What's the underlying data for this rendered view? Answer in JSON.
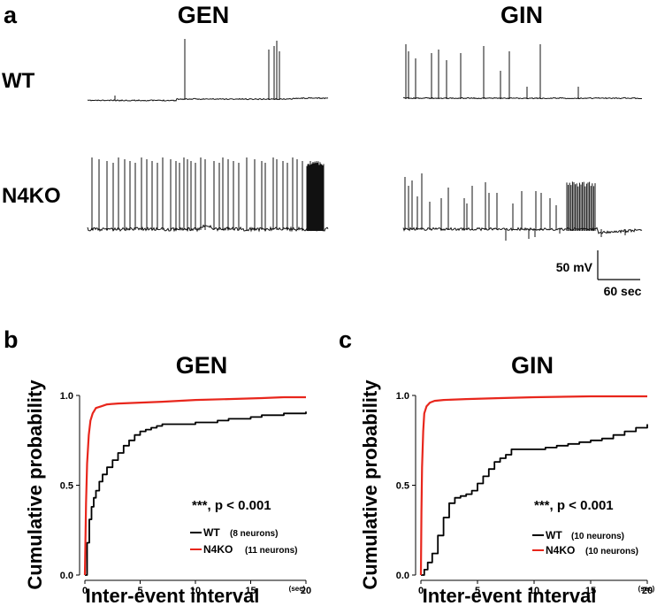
{
  "figure": {
    "panel_a": {
      "letter": "a",
      "columns": [
        "GEN",
        "GIN"
      ],
      "rows": [
        "WT",
        "N4KO"
      ],
      "scale_bar": {
        "voltage": "50 mV",
        "time": "60 sec"
      }
    },
    "panel_b": {
      "letter": "b"
    },
    "panel_c": {
      "letter": "c"
    }
  },
  "chart_data": [
    {
      "type": "line",
      "panel": "b",
      "title": "GEN",
      "xlabel": "Inter-event interval",
      "xunit": "(sec)",
      "ylabel": "Cumulative probability",
      "xlim": [
        0,
        20
      ],
      "ylim": [
        0,
        1
      ],
      "xticks": [
        0,
        5,
        10,
        15,
        20
      ],
      "yticks": [
        "0.0",
        "0.5",
        "1.0"
      ],
      "annotation": "***, p < 0.001",
      "series": [
        {
          "name": "WT",
          "detail": "(8 neurons)",
          "color": "#000000",
          "x": [
            0,
            0.2,
            0.4,
            0.6,
            0.8,
            1.0,
            1.3,
            1.6,
            2.0,
            2.5,
            3.0,
            3.5,
            4.0,
            4.5,
            5.0,
            5.5,
            6.0,
            6.5,
            7.0,
            8.0,
            9.0,
            10.0,
            11.0,
            12.0,
            13.0,
            14.0,
            15.0,
            16.0,
            17.0,
            18.0,
            19.0,
            20.0
          ],
          "y": [
            0,
            0.18,
            0.31,
            0.38,
            0.43,
            0.47,
            0.52,
            0.56,
            0.6,
            0.64,
            0.68,
            0.72,
            0.75,
            0.78,
            0.8,
            0.81,
            0.82,
            0.83,
            0.84,
            0.84,
            0.84,
            0.85,
            0.85,
            0.86,
            0.87,
            0.87,
            0.88,
            0.89,
            0.89,
            0.9,
            0.9,
            0.91
          ]
        },
        {
          "name": "N4KO",
          "detail": "(11 neurons)",
          "color": "#e8261c",
          "x": [
            0,
            0.1,
            0.2,
            0.35,
            0.5,
            0.7,
            1.0,
            1.5,
            2.0,
            3.0,
            5.0,
            7.0,
            10.0,
            13.0,
            16.0,
            18.0,
            20.0
          ],
          "y": [
            0,
            0.4,
            0.62,
            0.78,
            0.86,
            0.9,
            0.93,
            0.94,
            0.95,
            0.955,
            0.96,
            0.965,
            0.975,
            0.98,
            0.985,
            0.99,
            0.99
          ]
        }
      ]
    },
    {
      "type": "line",
      "panel": "c",
      "title": "GIN",
      "xlabel": "Inter-event interval",
      "xunit": "(sec)",
      "ylabel": "Cumulative probability",
      "xlim": [
        0,
        20
      ],
      "ylim": [
        0,
        1
      ],
      "xticks": [
        0,
        5,
        10,
        15,
        20
      ],
      "yticks": [
        "0.0",
        "0.5",
        "1.0"
      ],
      "annotation": "***, p < 0.001",
      "series": [
        {
          "name": "WT",
          "detail": "(10 neurons)",
          "color": "#000000",
          "x": [
            0,
            0.3,
            0.6,
            1.0,
            1.5,
            2.0,
            2.5,
            3.0,
            3.5,
            4.0,
            4.5,
            5.0,
            5.5,
            6.0,
            6.5,
            7.0,
            7.5,
            8.0,
            9.0,
            10.0,
            11.0,
            12.0,
            13.0,
            14.0,
            15.0,
            16.0,
            17.0,
            18.0,
            19.0,
            20.0
          ],
          "y": [
            0,
            0.03,
            0.07,
            0.12,
            0.22,
            0.32,
            0.4,
            0.43,
            0.44,
            0.45,
            0.47,
            0.51,
            0.55,
            0.59,
            0.63,
            0.65,
            0.67,
            0.7,
            0.7,
            0.7,
            0.71,
            0.72,
            0.73,
            0.74,
            0.75,
            0.76,
            0.78,
            0.8,
            0.82,
            0.84
          ]
        },
        {
          "name": "N4KO",
          "detail": "(10 neurons)",
          "color": "#e8261c",
          "x": [
            0,
            0.05,
            0.1,
            0.2,
            0.3,
            0.5,
            0.8,
            1.2,
            2.0,
            4.0,
            7.0,
            10.0,
            15.0,
            20.0
          ],
          "y": [
            0,
            0.35,
            0.6,
            0.8,
            0.9,
            0.94,
            0.96,
            0.97,
            0.975,
            0.98,
            0.985,
            0.99,
            0.995,
            0.995
          ]
        }
      ]
    }
  ]
}
